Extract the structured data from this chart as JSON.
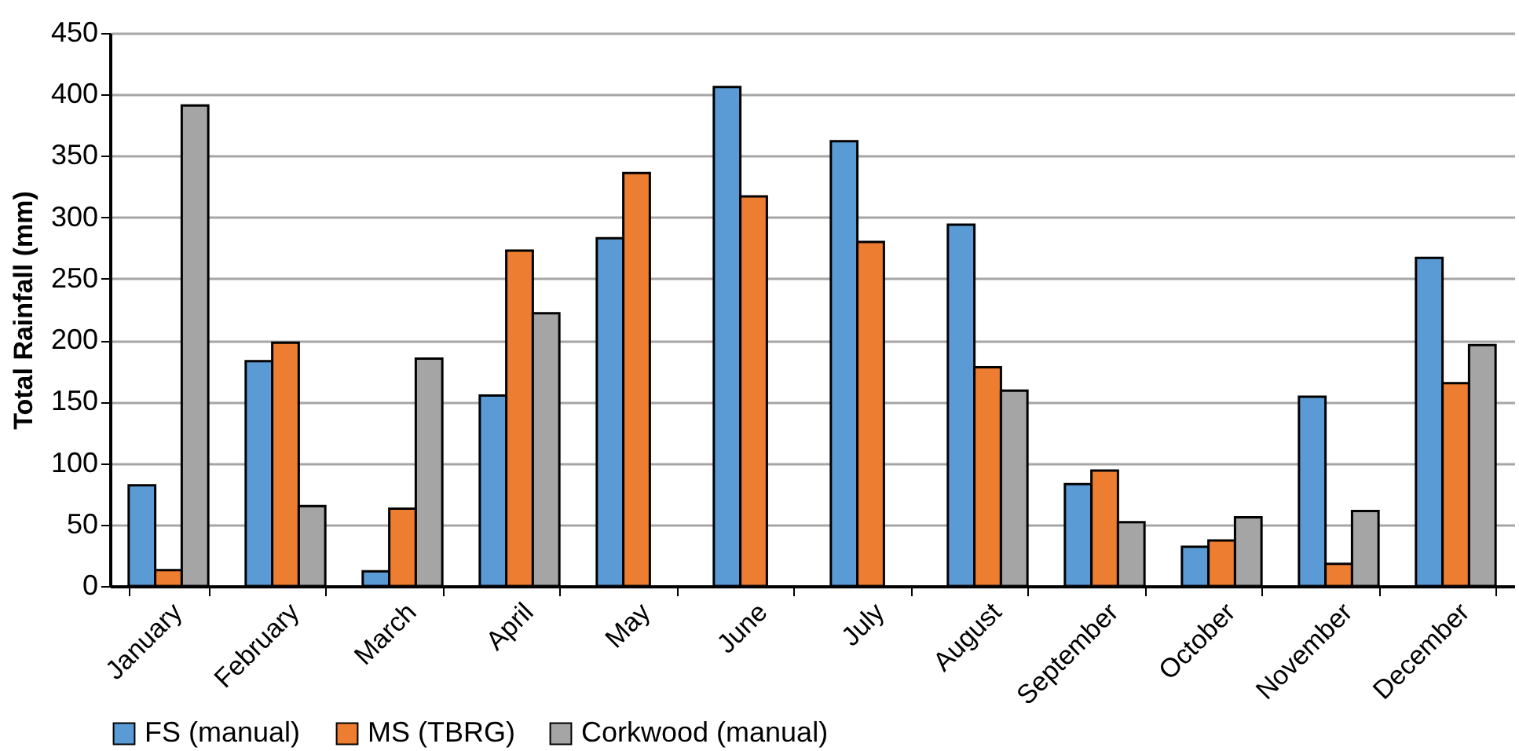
{
  "chart_data": {
    "type": "bar",
    "ylabel": "Total Rainfall (mm)",
    "categories": [
      "January",
      "February",
      "March",
      "April",
      "May",
      "June",
      "July",
      "August",
      "September",
      "October",
      "November",
      "December"
    ],
    "series": [
      {
        "name": "FS (manual)",
        "color": "#5b9bd5",
        "values": [
          82,
          183,
          12,
          155,
          283,
          406,
          362,
          294,
          83,
          32,
          154,
          267
        ]
      },
      {
        "name": "MS (TBRG)",
        "color": "#ed7d31",
        "values": [
          13,
          198,
          63,
          273,
          336,
          317,
          280,
          178,
          94,
          37,
          18,
          165
        ]
      },
      {
        "name": "Corkwood (manual)",
        "color": "#a5a5a5",
        "values": [
          391,
          65,
          185,
          222,
          null,
          null,
          null,
          159,
          52,
          56,
          61,
          196
        ]
      }
    ],
    "ylim": [
      0,
      450
    ],
    "yticks": [
      0,
      50,
      100,
      150,
      200,
      250,
      300,
      350,
      400,
      450
    ],
    "grid": "y",
    "legend": "bottom"
  }
}
